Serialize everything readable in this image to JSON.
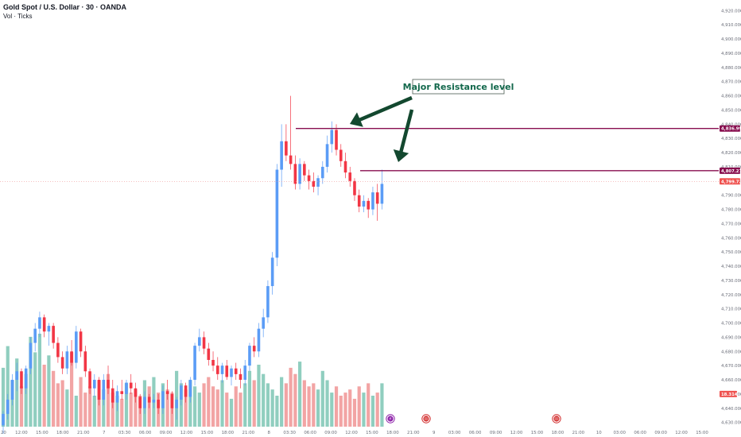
{
  "header": {
    "symbol": "Gold Spot / U.S. Dollar · 30 · OANDA",
    "volume_indicator": "Vol · Ticks"
  },
  "colors": {
    "up": "#5b9cf6",
    "up_after_gap": "#26a69a",
    "down": "#f23645",
    "wick": "#787b86",
    "vol_up": "#7dc5b4",
    "vol_down": "#f09494",
    "resistance": "#880e4f",
    "current_price": "#ef9a9a",
    "arrow": "#13482f",
    "callout_text": "#13684c"
  },
  "annotation": {
    "label": "Major Resistance level"
  },
  "price_labels": {
    "resistance_1": "4,836.993",
    "resistance_2": "4,807.277",
    "current": "4,799.725",
    "current_sub": "11:47",
    "volume": "18.314"
  },
  "events": [
    {
      "icon": "lightning-icon",
      "glyph": "⚡",
      "color": "#8e24aa"
    },
    {
      "icon": "us-flag-icon",
      "glyph": "",
      "color": "#d32f2f"
    },
    {
      "icon": "us-flag-icon",
      "glyph": "",
      "color": "#d32f2f"
    }
  ],
  "chart_data": {
    "type": "candlestick",
    "title": "Gold Spot / U.S. Dollar · 30 · OANDA",
    "y_axis": {
      "ticks": [
        "4,920.000",
        "4,910.000",
        "4,900.000",
        "4,890.000",
        "4,880.000",
        "4,870.000",
        "4,860.000",
        "4,850.000",
        "4,840.000",
        "4,830.000",
        "4,820.000",
        "4,810.000",
        "4,800.000",
        "4,790.000",
        "4,780.000",
        "4,770.000",
        "4,760.000",
        "4,750.000",
        "4,740.000",
        "4,730.000",
        "4,720.000",
        "4,710.000",
        "4,700.000",
        "4,690.000",
        "4,680.000",
        "4,670.000",
        "4,660.000",
        "4,650.000",
        "4,640.000",
        "4,630.000"
      ],
      "range": [
        4627,
        4923
      ],
      "side": "right"
    },
    "x_axis": {
      "ticks": [
        "20",
        "12:00",
        "15:00",
        "18:00",
        "21:00",
        "7",
        "03:30",
        "06:00",
        "09:00",
        "12:00",
        "15:00",
        "18:00",
        "21:00",
        "8",
        "03:30",
        "06:00",
        "09:00",
        "12:00",
        "15:00",
        "18:00",
        "21:00",
        "9",
        "03:00",
        "06:00",
        "09:00",
        "12:00",
        "15:00",
        "18:00",
        "21:00",
        "10",
        "03:00",
        "06:00",
        "09:00",
        "12:00",
        "15:00"
      ]
    },
    "resistance_levels": [
      4836.993,
      4807.277
    ],
    "current_price": 4799.725,
    "ohlc": [
      [
        4628,
        4638,
        4622,
        4636
      ],
      [
        4636,
        4650,
        4632,
        4646
      ],
      [
        4646,
        4664,
        4642,
        4660
      ],
      [
        4660,
        4672,
        4652,
        4666
      ],
      [
        4666,
        4668,
        4650,
        4654
      ],
      [
        4654,
        4670,
        4650,
        4668
      ],
      [
        4668,
        4690,
        4664,
        4686
      ],
      [
        4686,
        4700,
        4680,
        4696
      ],
      [
        4696,
        4708,
        4690,
        4704
      ],
      [
        4704,
        4706,
        4690,
        4694
      ],
      [
        4694,
        4700,
        4684,
        4698
      ],
      [
        4698,
        4700,
        4682,
        4686
      ],
      [
        4686,
        4690,
        4672,
        4676
      ],
      [
        4676,
        4680,
        4664,
        4668
      ],
      [
        4668,
        4684,
        4664,
        4680
      ],
      [
        4680,
        4688,
        4670,
        4672
      ],
      [
        4672,
        4698,
        4668,
        4694
      ],
      [
        4694,
        4696,
        4676,
        4680
      ],
      [
        4680,
        4684,
        4662,
        4666
      ],
      [
        4666,
        4668,
        4650,
        4654
      ],
      [
        4654,
        4664,
        4648,
        4660
      ],
      [
        4660,
        4662,
        4642,
        4646
      ],
      [
        4646,
        4664,
        4642,
        4660
      ],
      [
        4660,
        4670,
        4650,
        4654
      ],
      [
        4654,
        4660,
        4640,
        4644
      ],
      [
        4644,
        4656,
        4638,
        4652
      ],
      [
        4652,
        4660,
        4646,
        4650
      ],
      [
        4650,
        4660,
        4646,
        4658
      ],
      [
        4658,
        4664,
        4650,
        4654
      ],
      [
        4654,
        4658,
        4644,
        4648
      ],
      [
        4648,
        4650,
        4636,
        4640
      ],
      [
        4640,
        4652,
        4636,
        4648
      ],
      [
        4648,
        4650,
        4640,
        4644
      ],
      [
        4644,
        4650,
        4640,
        4646
      ],
      [
        4646,
        4650,
        4636,
        4640
      ],
      [
        4640,
        4656,
        4636,
        4652
      ],
      [
        4652,
        4660,
        4646,
        4650
      ],
      [
        4650,
        4652,
        4636,
        4640
      ],
      [
        4640,
        4648,
        4632,
        4646
      ],
      [
        4646,
        4660,
        4642,
        4656
      ],
      [
        4656,
        4658,
        4644,
        4648
      ],
      [
        4648,
        4662,
        4644,
        4660
      ],
      [
        4660,
        4686,
        4656,
        4684
      ],
      [
        4684,
        4696,
        4680,
        4690
      ],
      [
        4690,
        4694,
        4678,
        4682
      ],
      [
        4682,
        4686,
        4670,
        4674
      ],
      [
        4674,
        4680,
        4666,
        4670
      ],
      [
        4670,
        4676,
        4660,
        4664
      ],
      [
        4664,
        4672,
        4658,
        4670
      ],
      [
        4670,
        4674,
        4660,
        4662
      ],
      [
        4662,
        4670,
        4656,
        4668
      ],
      [
        4668,
        4672,
        4660,
        4664
      ],
      [
        4664,
        4668,
        4654,
        4660
      ],
      [
        4660,
        4674,
        4656,
        4670
      ],
      [
        4670,
        4686,
        4666,
        4684
      ],
      [
        4684,
        4690,
        4676,
        4680
      ],
      [
        4680,
        4700,
        4676,
        4696
      ],
      [
        4696,
        4710,
        4690,
        4704
      ],
      [
        4704,
        4730,
        4700,
        4726
      ],
      [
        4726,
        4750,
        4720,
        4746
      ],
      [
        4746,
        4812,
        4740,
        4808
      ],
      [
        4808,
        4840,
        4796,
        4828
      ],
      [
        4828,
        4840,
        4814,
        4818
      ],
      [
        4818,
        4860,
        4808,
        4812
      ],
      [
        4812,
        4818,
        4794,
        4798
      ],
      [
        4798,
        4816,
        4794,
        4812
      ],
      [
        4812,
        4814,
        4800,
        4804
      ],
      [
        4804,
        4808,
        4794,
        4800
      ],
      [
        4800,
        4806,
        4792,
        4796
      ],
      [
        4796,
        4804,
        4790,
        4802
      ],
      [
        4802,
        4814,
        4798,
        4810
      ],
      [
        4810,
        4832,
        4806,
        4826
      ],
      [
        4826,
        4842,
        4820,
        4836
      ],
      [
        4836,
        4840,
        4818,
        4822
      ],
      [
        4822,
        4826,
        4810,
        4814
      ],
      [
        4814,
        4820,
        4802,
        4806
      ],
      [
        4806,
        4810,
        4796,
        4800
      ],
      [
        4800,
        4802,
        4786,
        4790
      ],
      [
        4790,
        4794,
        4778,
        4782
      ],
      [
        4782,
        4790,
        4778,
        4786
      ],
      [
        4786,
        4788,
        4774,
        4780
      ],
      [
        4780,
        4796,
        4776,
        4792
      ],
      [
        4792,
        4798,
        4772,
        4784
      ],
      [
        4784,
        4808,
        4780,
        4798
      ]
    ],
    "volume": [
      {
        "v": 1,
        "up": true
      },
      {
        "v": 1,
        "up": true
      },
      {
        "v": 1,
        "up": false
      },
      {
        "v": 1,
        "up": true
      },
      {
        "v": 1,
        "up": false
      },
      {
        "v": 1,
        "up": true
      },
      {
        "v": 1,
        "up": true
      },
      {
        "v": 1,
        "up": true
      },
      {
        "v": 1,
        "up": true
      },
      {
        "v": 1,
        "up": false
      },
      {
        "v": 1,
        "up": true
      },
      {
        "v": 1,
        "up": false
      },
      {
        "v": 1,
        "up": false
      },
      {
        "v": 1,
        "up": false
      },
      {
        "v": 1,
        "up": true
      },
      {
        "v": 1,
        "up": false
      },
      {
        "v": 1,
        "up": true
      },
      {
        "v": 1,
        "up": false
      },
      {
        "v": 1,
        "up": false
      },
      {
        "v": 1,
        "up": false
      },
      {
        "v": 1,
        "up": true
      },
      {
        "v": 1,
        "up": false
      },
      {
        "v": 1,
        "up": true
      },
      {
        "v": 1,
        "up": false
      },
      {
        "v": 1,
        "up": false
      },
      {
        "v": 1,
        "up": true
      },
      {
        "v": 1,
        "up": false
      },
      {
        "v": 1,
        "up": true
      },
      {
        "v": 1,
        "up": false
      },
      {
        "v": 1,
        "up": false
      },
      {
        "v": 1,
        "up": false
      },
      {
        "v": 1,
        "up": true
      },
      {
        "v": 1,
        "up": false
      },
      {
        "v": 1,
        "up": true
      },
      {
        "v": 1,
        "up": false
      },
      {
        "v": 1,
        "up": true
      },
      {
        "v": 1,
        "up": false
      },
      {
        "v": 1,
        "up": false
      },
      {
        "v": 1,
        "up": true
      },
      {
        "v": 1,
        "up": true
      },
      {
        "v": 1,
        "up": false
      },
      {
        "v": 1,
        "up": true
      },
      {
        "v": 1,
        "up": true
      },
      {
        "v": 1,
        "up": true
      },
      {
        "v": 1,
        "up": false
      },
      {
        "v": 1,
        "up": false
      },
      {
        "v": 1,
        "up": false
      },
      {
        "v": 1,
        "up": false
      },
      {
        "v": 1,
        "up": true
      },
      {
        "v": 1,
        "up": false
      },
      {
        "v": 1,
        "up": true
      },
      {
        "v": 1,
        "up": false
      },
      {
        "v": 1,
        "up": false
      },
      {
        "v": 1,
        "up": true
      },
      {
        "v": 1,
        "up": true
      },
      {
        "v": 1,
        "up": false
      },
      {
        "v": 1,
        "up": true
      },
      {
        "v": 1,
        "up": true
      },
      {
        "v": 1,
        "up": true
      },
      {
        "v": 1,
        "up": true
      },
      {
        "v": 1,
        "up": true
      },
      {
        "v": 1,
        "up": true
      },
      {
        "v": 1,
        "up": false
      },
      {
        "v": 1,
        "up": false
      },
      {
        "v": 1,
        "up": false
      },
      {
        "v": 1,
        "up": true
      },
      {
        "v": 1,
        "up": false
      },
      {
        "v": 1,
        "up": false
      },
      {
        "v": 1,
        "up": false
      },
      {
        "v": 1,
        "up": true
      },
      {
        "v": 1,
        "up": true
      },
      {
        "v": 1,
        "up": true
      },
      {
        "v": 1,
        "up": true
      },
      {
        "v": 1,
        "up": false
      },
      {
        "v": 1,
        "up": false
      },
      {
        "v": 1,
        "up": false
      },
      {
        "v": 1,
        "up": false
      },
      {
        "v": 1,
        "up": false
      },
      {
        "v": 1,
        "up": false
      },
      {
        "v": 1,
        "up": true
      },
      {
        "v": 1,
        "up": false
      },
      {
        "v": 1,
        "up": true
      },
      {
        "v": 1,
        "up": false
      },
      {
        "v": 1,
        "up": true
      }
    ],
    "volume_levels": [
      38,
      52,
      30,
      44,
      26,
      34,
      58,
      48,
      60,
      40,
      46,
      36,
      28,
      30,
      24,
      48,
      20,
      32,
      22,
      26,
      20,
      30,
      24,
      34,
      22,
      20,
      18,
      28,
      22,
      24,
      20,
      30,
      26,
      32,
      22,
      28,
      24,
      22,
      36,
      28,
      24,
      30,
      26,
      22,
      28,
      32,
      26,
      24,
      30,
      22,
      18,
      26,
      22,
      28,
      36,
      30,
      40,
      34,
      28,
      24,
      20,
      32,
      28,
      38,
      34,
      42,
      30,
      26,
      28,
      24,
      36,
      30,
      22,
      26,
      20,
      22,
      24,
      18,
      26,
      22,
      28,
      20,
      22,
      28
    ],
    "grid": false,
    "legend": "none"
  }
}
